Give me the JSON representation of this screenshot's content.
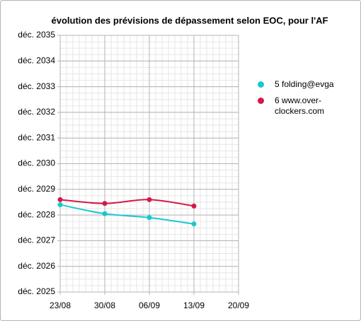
{
  "chart_data": {
    "type": "line",
    "title": "évolution des prévisions de dépassement selon EOC, pour l'AF",
    "categories": [
      "23/08",
      "30/08",
      "06/09",
      "13/09",
      "20/09"
    ],
    "series": [
      {
        "name": "5 folding@evga",
        "color": "#17c8d0",
        "values": [
          2028.4,
          2028.05,
          2027.9,
          2027.65,
          null
        ]
      },
      {
        "name": "6 www.over-clockers.com",
        "color": "#d4184a",
        "values": [
          2028.6,
          2028.45,
          2028.6,
          2028.35,
          null
        ]
      }
    ],
    "ylim": [
      2025,
      2035
    ],
    "yticks": [
      {
        "value": 2025,
        "label": "déc. 2025"
      },
      {
        "value": 2026,
        "label": "déc. 2026"
      },
      {
        "value": 2027,
        "label": "déc. 2027"
      },
      {
        "value": 2028,
        "label": "déc. 2028"
      },
      {
        "value": 2029,
        "label": "déc. 2029"
      },
      {
        "value": 2030,
        "label": "déc. 2030"
      },
      {
        "value": 2031,
        "label": "déc. 2031"
      },
      {
        "value": 2032,
        "label": "déc. 2032"
      },
      {
        "value": 2033,
        "label": "déc. 2033"
      },
      {
        "value": 2034,
        "label": "déc. 2034"
      },
      {
        "value": 2035,
        "label": "déc. 2035"
      }
    ],
    "grid": true,
    "smooth": true,
    "legend": "right"
  }
}
